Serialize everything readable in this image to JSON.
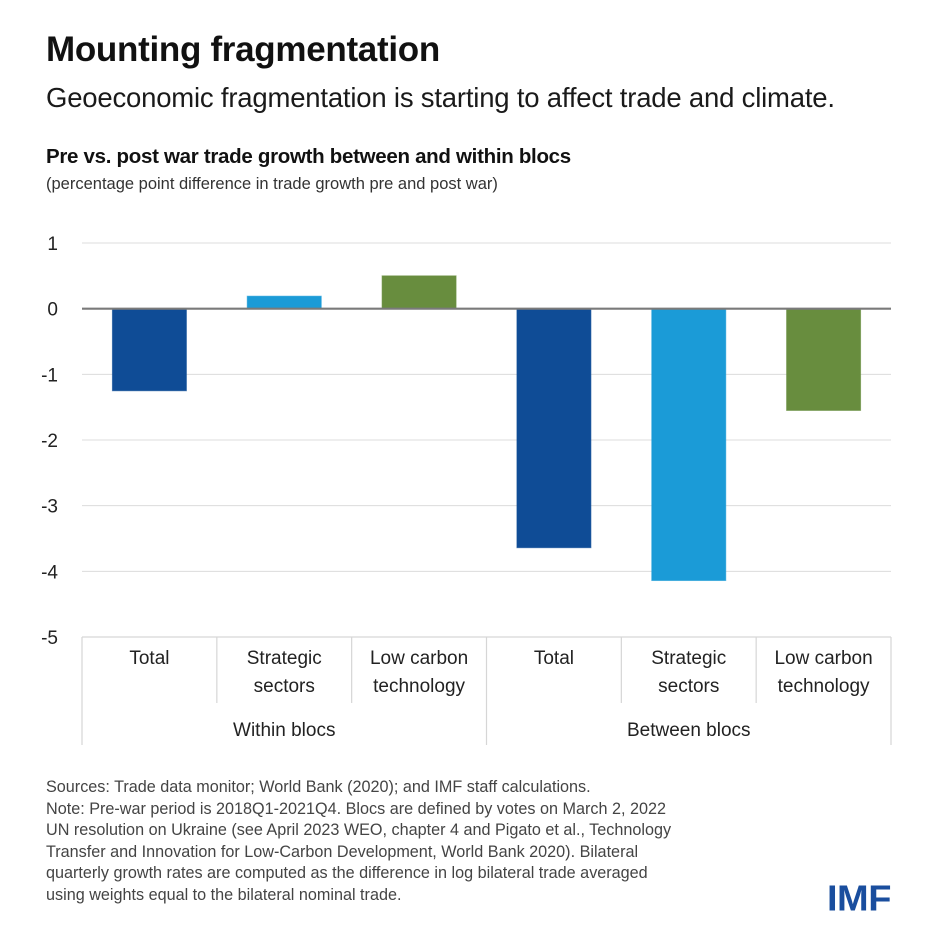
{
  "header": {
    "title": "Mounting fragmentation",
    "subtitle": "Geoeconomic fragmentation is starting to affect trade and climate."
  },
  "chart_data": {
    "type": "bar",
    "title": "Pre vs. post war trade growth between and within blocs",
    "subtitle": "(percentage point difference in trade growth pre and post war)",
    "xlabel": "",
    "ylabel": "",
    "ylim": [
      -5,
      1
    ],
    "yticks": [
      1,
      0,
      -1,
      -2,
      -3,
      -4,
      -5
    ],
    "ytick_labels": [
      "1",
      "0",
      "-1",
      "-2",
      "-3",
      "-4",
      "-5"
    ],
    "grid": true,
    "legend": null,
    "groups": [
      {
        "name": "Within blocs",
        "categories": [
          {
            "label_lines": [
              "Total"
            ],
            "value": -1.25,
            "color": "#0f4c96"
          },
          {
            "label_lines": [
              "Strategic",
              "sectors"
            ],
            "value": 0.19,
            "color": "#1b9bd7"
          },
          {
            "label_lines": [
              "Low carbon",
              "technology"
            ],
            "value": 0.5,
            "color": "#688d3e"
          }
        ]
      },
      {
        "name": "Between blocs",
        "categories": [
          {
            "label_lines": [
              "Total"
            ],
            "value": -3.64,
            "color": "#0f4c96"
          },
          {
            "label_lines": [
              "Strategic",
              "sectors"
            ],
            "value": -4.14,
            "color": "#1b9bd7"
          },
          {
            "label_lines": [
              "Low carbon",
              "technology"
            ],
            "value": -1.55,
            "color": "#688d3e"
          }
        ]
      }
    ]
  },
  "notes": {
    "lines": [
      "Sources: Trade data monitor; World Bank (2020); and IMF staff calculations.",
      "Note: Pre-war period is 2018Q1-2021Q4. Blocs are defined by votes on March 2, 2022",
      "UN resolution on Ukraine (see April 2023 WEO, chapter 4 and Pigato et al., Technology",
      "Transfer and Innovation for Low-Carbon Development, World Bank 2020). Bilateral",
      "quarterly growth rates are computed as the difference in log bilateral trade averaged",
      "using weights equal to the bilateral nominal trade."
    ]
  },
  "logo": {
    "text": "IMF",
    "color": "#1a4e9e"
  }
}
